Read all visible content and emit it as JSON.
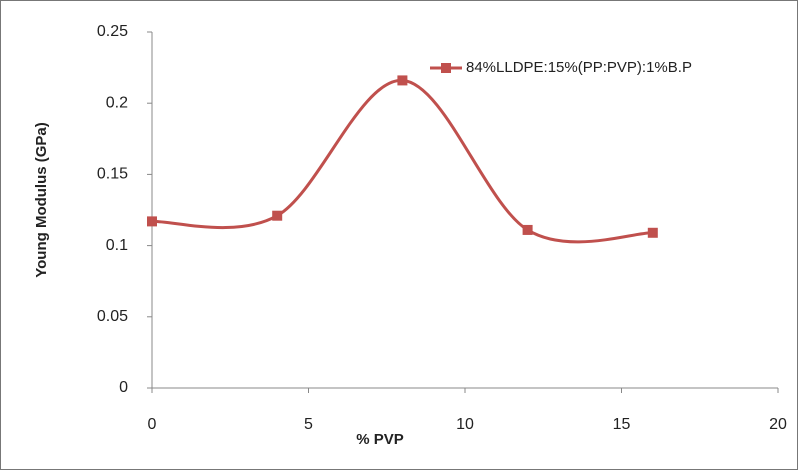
{
  "chart_data": {
    "type": "line",
    "x_label": "% PVP",
    "y_label": "Young Modulus (GPa)",
    "x": [
      0,
      4,
      8,
      12,
      16
    ],
    "series": [
      {
        "name": "84%LLDPE:15%(PP:PVP):1%B.P",
        "color": "#c0504d",
        "values": [
          0.117,
          0.121,
          0.216,
          0.111,
          0.109
        ]
      }
    ],
    "xlim": [
      0,
      20
    ],
    "xticks": [
      0,
      5,
      10,
      15,
      20
    ],
    "ylim": [
      0,
      0.25
    ],
    "yticks": [
      0,
      0.05,
      0.1,
      0.15,
      0.2,
      0.25
    ],
    "smooth": true,
    "legend": "upper right",
    "grid": false
  }
}
